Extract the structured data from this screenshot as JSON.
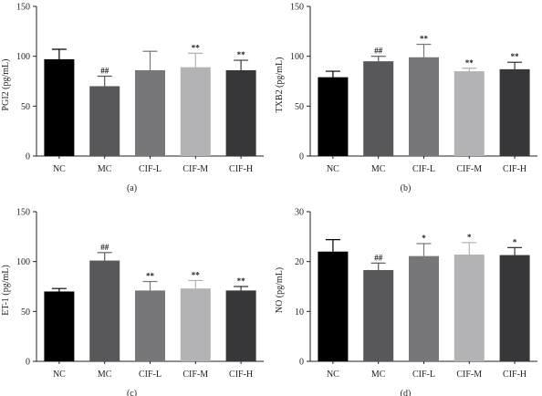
{
  "colors": {
    "bars": [
      "#000000",
      "#58585a",
      "#77777a",
      "#b3b3b5",
      "#37373a"
    ],
    "axis": "#222222"
  },
  "chart_data": [
    {
      "type": "bar",
      "panel_label": "(a)",
      "ylabel": "PGI2 (pg/mL)",
      "ylim": [
        0,
        150
      ],
      "yticks": [
        "0",
        "50",
        "100",
        "150"
      ],
      "categories": [
        "NC",
        "MC",
        "CIF-L",
        "CIF-M",
        "CIF-H"
      ],
      "values": [
        97,
        70,
        86,
        89,
        86
      ],
      "errors": [
        10,
        10,
        19,
        14,
        10
      ],
      "significance": [
        "",
        "##",
        "",
        "**",
        "**"
      ]
    },
    {
      "type": "bar",
      "panel_label": "(b)",
      "ylabel": "TXB2 (pg/mL)",
      "ylim": [
        0,
        150
      ],
      "yticks": [
        "0",
        "50",
        "100",
        "150"
      ],
      "categories": [
        "NC",
        "MC",
        "CIF-L",
        "CIF-M",
        "CIF-H"
      ],
      "values": [
        79,
        95,
        99,
        85,
        87
      ],
      "errors": [
        6,
        5,
        13,
        3,
        7
      ],
      "significance": [
        "",
        "##",
        "**",
        "**",
        "**"
      ]
    },
    {
      "type": "bar",
      "panel_label": "(c)",
      "ylabel": "ET-1 (pg/mL)",
      "ylim": [
        0,
        150
      ],
      "yticks": [
        "0",
        "50",
        "100",
        "150"
      ],
      "categories": [
        "NC",
        "MC",
        "CIF-L",
        "CIF-M",
        "CIF-H"
      ],
      "values": [
        70,
        101,
        71,
        73,
        71
      ],
      "errors": [
        3,
        8,
        9,
        8,
        4
      ],
      "significance": [
        "",
        "##",
        "**",
        "**",
        "**"
      ]
    },
    {
      "type": "bar",
      "panel_label": "(d)",
      "ylabel": "NO (pg/mL)",
      "ylim": [
        0,
        30
      ],
      "yticks": [
        "0",
        "10",
        "20",
        "30"
      ],
      "categories": [
        "NC",
        "MC",
        "CIF-L",
        "CIF-M",
        "CIF-H"
      ],
      "values": [
        22,
        18.3,
        21.1,
        21.4,
        21.3
      ],
      "errors": [
        2.4,
        1.4,
        2.5,
        2.4,
        1.5
      ],
      "significance": [
        "",
        "##",
        "*",
        "*",
        "*"
      ]
    }
  ]
}
